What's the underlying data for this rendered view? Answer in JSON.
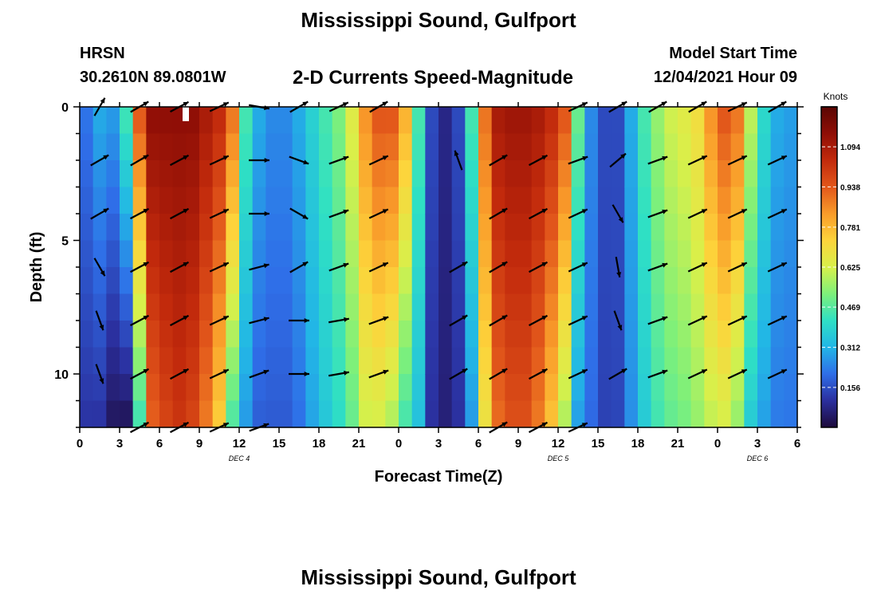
{
  "header": {
    "title": "Mississippi Sound, Gulfport",
    "station": "HRSN",
    "coords": "30.2610N  89.0801W",
    "subtitle": "2-D Currents Speed-Magnitude",
    "model_start_label": "Model Start Time",
    "model_start_value": "12/04/2021 Hour 09"
  },
  "footer": {
    "title": "Mississippi Sound, Gulfport"
  },
  "chart_data": {
    "type": "heatmap",
    "title": "2-D Currents Speed-Magnitude",
    "xlabel": "Forecast Time(Z)",
    "ylabel": "Depth (ft)",
    "x_ticks": [
      "0",
      "3",
      "6",
      "9",
      "12",
      "15",
      "18",
      "21",
      "0",
      "3",
      "6",
      "9",
      "12",
      "15",
      "18",
      "21",
      "0",
      "3",
      "6"
    ],
    "x_range_hours": [
      0,
      54
    ],
    "y_ticks": [
      "0",
      "5",
      "10"
    ],
    "y_range_ft": [
      0,
      12
    ],
    "date_labels": [
      {
        "text": "DEC 4",
        "hour": 12
      },
      {
        "text": "DEC 5",
        "hour": 36
      },
      {
        "text": "DEC 6",
        "hour": 51
      }
    ],
    "colorbar": {
      "label": "Knots",
      "ticks": [
        "0.156",
        "0.312",
        "0.469",
        "0.625",
        "0.781",
        "0.938",
        "1.094"
      ],
      "range": [
        0,
        1.25
      ],
      "colors": [
        "#1d0a3a",
        "#2b2f9e",
        "#2f6ee8",
        "#22b6e6",
        "#2fe0c4",
        "#7ef07a",
        "#d8f04a",
        "#fdd43b",
        "#f99b2a",
        "#e2571b",
        "#c22a0c",
        "#8f0e06",
        "#5a0603"
      ]
    },
    "speed_profile": {
      "hours": [
        0,
        1,
        2,
        3,
        4,
        5,
        6,
        7,
        8,
        9,
        10,
        11,
        12,
        13,
        14,
        15,
        16,
        17,
        18,
        19,
        20,
        21,
        22,
        23,
        24,
        25,
        26,
        27,
        28,
        29,
        30,
        31,
        32,
        33,
        34,
        35,
        36,
        37,
        38,
        39,
        40,
        41,
        42,
        43,
        44,
        45,
        46,
        47,
        48,
        49,
        50,
        51,
        52,
        53,
        54
      ],
      "surface_speed": [
        0.22,
        0.3,
        0.28,
        0.45,
        0.95,
        1.15,
        1.15,
        1.15,
        1.15,
        1.1,
        1.05,
        0.9,
        0.45,
        0.3,
        0.25,
        0.25,
        0.3,
        0.38,
        0.45,
        0.52,
        0.65,
        0.85,
        0.95,
        0.95,
        0.8,
        0.45,
        0.15,
        0.08,
        0.15,
        0.45,
        0.9,
        1.1,
        1.12,
        1.12,
        1.1,
        1.05,
        0.95,
        0.5,
        0.25,
        0.15,
        0.15,
        0.3,
        0.45,
        0.55,
        0.62,
        0.65,
        0.7,
        0.85,
        0.95,
        0.9,
        0.6,
        0.4,
        0.3,
        0.28,
        0.28
      ],
      "bottom_factor": [
        0.5,
        0.35,
        0.12,
        0.05,
        0.45,
        0.8,
        0.85,
        0.88,
        0.85,
        0.8,
        0.7,
        0.5,
        0.6,
        0.6,
        0.7,
        0.7,
        0.7,
        0.75,
        0.78,
        0.78,
        0.75,
        0.72,
        0.65,
        0.6,
        0.55,
        0.75,
        0.7,
        0.8,
        0.7,
        0.6,
        0.75,
        0.82,
        0.85,
        0.85,
        0.8,
        0.72,
        0.6,
        0.55,
        0.8,
        0.9,
        0.95,
        0.85,
        0.8,
        0.8,
        0.78,
        0.78,
        0.78,
        0.7,
        0.65,
        0.6,
        0.6,
        0.7,
        0.75,
        0.78,
        0.8
      ]
    },
    "vectors": {
      "x_hours": [
        1.5,
        4.5,
        7.5,
        10.5,
        13.5,
        16.5,
        19.5,
        22.5,
        25.5,
        28.5,
        31.5,
        34.5,
        37.5,
        40.5,
        43.5,
        46.5,
        49.5,
        52.5
      ],
      "depths_ft": [
        0,
        2,
        4,
        6,
        8,
        10,
        12
      ],
      "directions_deg": [
        [
          30,
          60,
          62,
          65,
          100,
          60,
          65,
          60,
          null,
          null,
          null,
          null,
          65,
          60,
          60,
          60,
          65,
          60
        ],
        [
          60,
          60,
          62,
          65,
          90,
          110,
          70,
          65,
          null,
          340,
          60,
          62,
          70,
          50,
          70,
          65,
          65,
          65
        ],
        [
          60,
          62,
          62,
          65,
          90,
          120,
          70,
          65,
          null,
          null,
          60,
          62,
          65,
          150,
          70,
          65,
          65,
          65
        ],
        [
          150,
          62,
          62,
          65,
          75,
          60,
          70,
          65,
          null,
          60,
          60,
          62,
          65,
          170,
          70,
          65,
          65,
          65
        ],
        [
          160,
          62,
          62,
          65,
          75,
          90,
          80,
          70,
          null,
          60,
          60,
          62,
          65,
          160,
          70,
          65,
          65,
          65
        ],
        [
          160,
          62,
          62,
          65,
          70,
          90,
          80,
          70,
          null,
          60,
          60,
          62,
          65,
          60,
          70,
          65,
          65,
          65
        ],
        [
          null,
          62,
          62,
          65,
          70,
          null,
          null,
          null,
          null,
          null,
          60,
          62,
          65,
          null,
          null,
          null,
          null,
          null
        ]
      ]
    }
  }
}
